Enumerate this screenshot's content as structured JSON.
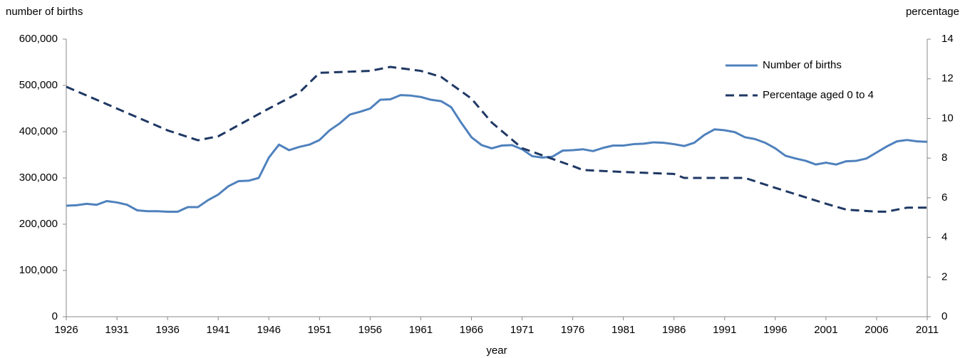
{
  "chart_data": {
    "type": "line",
    "y_axis_label": "number of births",
    "y2_axis_label": "percentage",
    "x_axis_label": "year",
    "xlim": [
      1926,
      2011
    ],
    "xticks": [
      1926,
      1931,
      1936,
      1941,
      1946,
      1951,
      1956,
      1961,
      1966,
      1971,
      1976,
      1981,
      1986,
      1991,
      1996,
      2001,
      2006,
      2011
    ],
    "ylim": [
      0,
      600000
    ],
    "yticks": [
      0,
      {
        "value": 100000,
        "label": "100,000"
      },
      {
        "value": 200000,
        "label": "200,000"
      },
      {
        "value": 300000,
        "label": "300,000"
      },
      {
        "value": 400000,
        "label": "400,000"
      },
      {
        "value": 500000,
        "label": "500,000"
      },
      {
        "value": 600000,
        "label": "600,000"
      }
    ],
    "y2lim": [
      0,
      14
    ],
    "y2ticks": [
      0,
      2,
      4,
      6,
      8,
      10,
      12,
      14
    ],
    "legend": "upper right",
    "series": [
      {
        "name": "Number of births",
        "color": "#4f81bd",
        "style": "solid",
        "axis": "y",
        "x": [
          1926,
          1927,
          1928,
          1929,
          1930,
          1931,
          1932,
          1933,
          1934,
          1935,
          1936,
          1937,
          1938,
          1939,
          1940,
          1941,
          1942,
          1943,
          1944,
          1945,
          1946,
          1947,
          1948,
          1949,
          1950,
          1951,
          1952,
          1953,
          1954,
          1955,
          1956,
          1957,
          1958,
          1959,
          1960,
          1961,
          1962,
          1963,
          1964,
          1965,
          1966,
          1967,
          1968,
          1969,
          1970,
          1971,
          1972,
          1973,
          1974,
          1975,
          1976,
          1977,
          1978,
          1979,
          1980,
          1981,
          1982,
          1983,
          1984,
          1985,
          1986,
          1987,
          1988,
          1989,
          1990,
          1991,
          1992,
          1993,
          1994,
          1995,
          1996,
          1997,
          1998,
          1999,
          2000,
          2001,
          2002,
          2003,
          2004,
          2005,
          2006,
          2007,
          2008,
          2009,
          2010,
          2011
        ],
        "values": [
          240000,
          241000,
          244000,
          242000,
          250000,
          247000,
          242000,
          230000,
          228000,
          228000,
          227000,
          227000,
          237000,
          237000,
          252000,
          264000,
          282000,
          293000,
          294000,
          300000,
          344000,
          372000,
          360000,
          367000,
          372000,
          382000,
          403000,
          418000,
          437000,
          443000,
          450000,
          469000,
          470000,
          479000,
          478000,
          475000,
          469000,
          466000,
          453000,
          419000,
          388000,
          371000,
          364000,
          370000,
          371000,
          362000,
          347000,
          344000,
          346000,
          359000,
          360000,
          362000,
          358000,
          365000,
          370000,
          370000,
          373000,
          374000,
          377000,
          376000,
          373000,
          369000,
          376000,
          393000,
          405000,
          403000,
          399000,
          388000,
          384000,
          376000,
          364000,
          348000,
          342000,
          337000,
          329000,
          333000,
          329000,
          336000,
          337000,
          342000,
          355000,
          368000,
          379000,
          382000,
          379000,
          378000
        ]
      },
      {
        "name": "Percentage aged 0 to 4",
        "color": "#1f3864",
        "style": "dashed",
        "axis": "y2",
        "x": [
          1926,
          1931,
          1936,
          1939,
          1941,
          1946,
          1949,
          1951,
          1956,
          1958,
          1961,
          1963,
          1966,
          1968,
          1971,
          1976,
          1977,
          1981,
          1986,
          1987,
          1991,
          1993,
          1996,
          2001,
          2003,
          2006,
          2007,
          2009,
          2011
        ],
        "values": [
          11.6,
          10.5,
          9.4,
          8.9,
          9.1,
          10.5,
          11.3,
          12.3,
          12.4,
          12.6,
          12.4,
          12.1,
          11.0,
          9.8,
          8.5,
          7.6,
          7.4,
          7.3,
          7.2,
          7.0,
          7.0,
          7.0,
          6.5,
          5.7,
          5.4,
          5.3,
          5.3,
          5.5,
          5.5
        ]
      }
    ]
  }
}
